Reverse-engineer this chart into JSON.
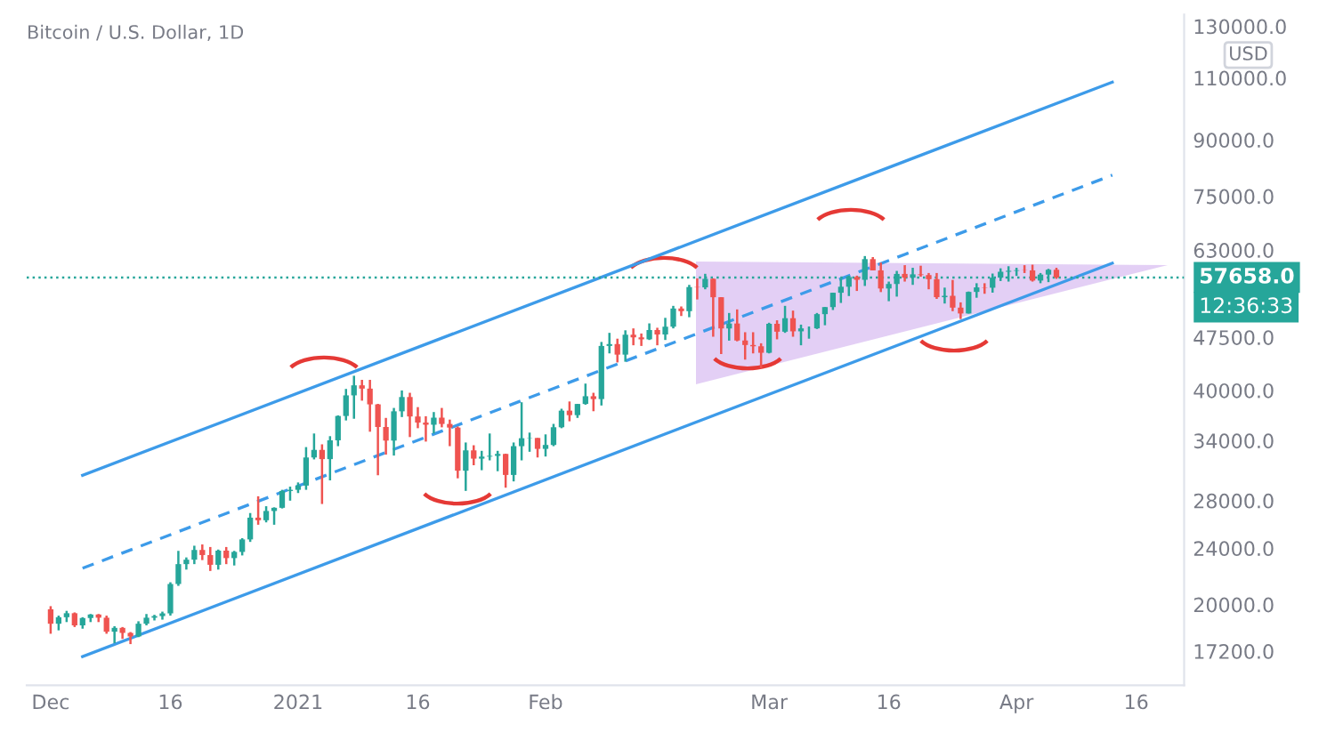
{
  "chart_data": {
    "type": "candlestick",
    "title": "Bitcoin / U.S. Dollar, 1D",
    "colors": [
      "#ef5350",
      "#26a69a",
      "#26a69a",
      "#ef5350",
      "#26a69a",
      "#26a69a",
      "#ef5350",
      "#ef5350",
      "#26a69a",
      "#ef5350",
      "#ef5350",
      "#26a69a",
      "#26a69a",
      "#26a69a",
      "#26a69a",
      "#26a69a",
      "#26a69a",
      "#26a69a",
      "#26a69a",
      "#ef5350",
      "#ef5350",
      "#26a69a",
      "#ef5350",
      "#26a69a",
      "#26a69a",
      "#26a69a",
      "#ef5350",
      "#26a69a",
      "#26a69a",
      "#26a69a",
      "#26a69a",
      "#26a69a",
      "#26a69a",
      "#26a69a",
      "#ef5350",
      "#26a69a",
      "#26a69a",
      "#26a69a",
      "#26a69a",
      "#ef5350",
      "#ef5350",
      "#ef5350",
      "#ef5350",
      "#26a69a",
      "#26a69a",
      "#ef5350",
      "#ef5350",
      "#ef5350",
      "#26a69a",
      "#ef5350",
      "#ef5350",
      "#ef5350",
      "#26a69a",
      "#ef5350",
      "#26a69a",
      "#26a69a",
      "#26a69a",
      "#ef5350",
      "#26a69a",
      "#26a69a",
      "#26a69a",
      "#ef5350",
      "#26a69a",
      "#26a69a",
      "#26a69a",
      "#ef5350",
      "#26a69a",
      "#26a69a",
      "#ef5350",
      "#26a69a",
      "#26a69a",
      "#ef5350",
      "#26a69a",
      "#ef5350",
      "#ef5350",
      "#26a69a",
      "#ef5350",
      "#26a69a",
      "#26a69a",
      "#ef5350",
      "#26a69a",
      "#ef5350",
      "#26a69a",
      "#ef5350",
      "#ef5350",
      "#26a69a",
      "#ef5350",
      "#ef5350",
      "#ef5350",
      "#ef5350",
      "#26a69a",
      "#ef5350",
      "#26a69a",
      "#ef5350",
      "#26a69a",
      "#26a69a",
      "#26a69a",
      "#26a69a",
      "#26a69a",
      "#26a69a",
      "#26a69a",
      "#ef5350",
      "#26a69a",
      "#ef5350",
      "#ef5350",
      "#26a69a",
      "#26a69a",
      "#ef5350",
      "#26a69a",
      "#ef5350",
      "#ef5350",
      "#ef5350",
      "#26a69a",
      "#ef5350",
      "#ef5350",
      "#26a69a",
      "#26a69a",
      "#ef5350",
      "#26a69a",
      "#26a69a",
      "#26a69a",
      "#26a69a",
      "#ef5350",
      "#ef5350",
      "#26a69a",
      "#26a69a",
      "#ef5350"
    ],
    "x": [
      "2020-12-01",
      "2020-12-02",
      "2020-12-03",
      "2020-12-04",
      "2020-12-05",
      "2020-12-06",
      "2020-12-07",
      "2020-12-08",
      "2020-12-09",
      "2020-12-10",
      "2020-12-11",
      "2020-12-12",
      "2020-12-13",
      "2020-12-14",
      "2020-12-15",
      "2020-12-16",
      "2020-12-17",
      "2020-12-18",
      "2020-12-19",
      "2020-12-20",
      "2020-12-21",
      "2020-12-22",
      "2020-12-23",
      "2020-12-24",
      "2020-12-25",
      "2020-12-26",
      "2020-12-27",
      "2020-12-28",
      "2020-12-29",
      "2020-12-30",
      "2020-12-31",
      "2021-01-01",
      "2021-01-02",
      "2021-01-03",
      "2021-01-04",
      "2021-01-05",
      "2021-01-06",
      "2021-01-07",
      "2021-01-08",
      "2021-01-09",
      "2021-01-10",
      "2021-01-11",
      "2021-01-12",
      "2021-01-13",
      "2021-01-14",
      "2021-01-15",
      "2021-01-16",
      "2021-01-17",
      "2021-01-18",
      "2021-01-19",
      "2021-01-20",
      "2021-01-21",
      "2021-01-22",
      "2021-01-23",
      "2021-01-24",
      "2021-01-25",
      "2021-01-26",
      "2021-01-27",
      "2021-01-28",
      "2021-01-29",
      "2021-01-30",
      "2021-01-31",
      "2021-02-01",
      "2021-02-02",
      "2021-02-03",
      "2021-02-04",
      "2021-02-05",
      "2021-02-06",
      "2021-02-07",
      "2021-02-08",
      "2021-02-09",
      "2021-02-10",
      "2021-02-11",
      "2021-02-12",
      "2021-02-13",
      "2021-02-14",
      "2021-02-15",
      "2021-02-16",
      "2021-02-17",
      "2021-02-18",
      "2021-02-19",
      "2021-02-20",
      "2021-02-21",
      "2021-02-22",
      "2021-02-23",
      "2021-02-24",
      "2021-02-25",
      "2021-02-26",
      "2021-02-27",
      "2021-02-28",
      "2021-03-01",
      "2021-03-02",
      "2021-03-03",
      "2021-03-04",
      "2021-03-05",
      "2021-03-06",
      "2021-03-07",
      "2021-03-08",
      "2021-03-09",
      "2021-03-10",
      "2021-03-11",
      "2021-03-12",
      "2021-03-13",
      "2021-03-14",
      "2021-03-15",
      "2021-03-16",
      "2021-03-17",
      "2021-03-18",
      "2021-03-19",
      "2021-03-20",
      "2021-03-21",
      "2021-03-22",
      "2021-03-23",
      "2021-03-24",
      "2021-03-25",
      "2021-03-26",
      "2021-03-27",
      "2021-03-28",
      "2021-03-29",
      "2021-03-30",
      "2021-03-31",
      "2021-04-01",
      "2021-04-02",
      "2021-04-03",
      "2021-04-04",
      "2021-04-05",
      "2021-04-06"
    ],
    "ohlc": [
      [
        19700,
        19900,
        18200,
        18800
      ],
      [
        18800,
        19300,
        18400,
        19200
      ],
      [
        19200,
        19600,
        18900,
        19450
      ],
      [
        19450,
        19500,
        18600,
        18700
      ],
      [
        18700,
        19200,
        18500,
        19150
      ],
      [
        19150,
        19400,
        18900,
        19370
      ],
      [
        19370,
        19400,
        18900,
        19170
      ],
      [
        19170,
        19300,
        18200,
        18320
      ],
      [
        18320,
        18650,
        17650,
        18550
      ],
      [
        18550,
        18600,
        17900,
        18250
      ],
      [
        18250,
        18300,
        17600,
        18040
      ],
      [
        18040,
        18950,
        18000,
        18800
      ],
      [
        18800,
        19400,
        18700,
        19170
      ],
      [
        19170,
        19350,
        19000,
        19270
      ],
      [
        19270,
        19550,
        19050,
        19440
      ],
      [
        19440,
        21500,
        19300,
        21380
      ],
      [
        21380,
        23800,
        21250,
        22800
      ],
      [
        22800,
        23300,
        22400,
        23130
      ],
      [
        23130,
        24200,
        22800,
        23870
      ],
      [
        23870,
        24300,
        23100,
        23480
      ],
      [
        23480,
        24100,
        22300,
        22750
      ],
      [
        22750,
        23900,
        22400,
        23820
      ],
      [
        23820,
        24100,
        22800,
        23250
      ],
      [
        23250,
        23800,
        22700,
        23720
      ],
      [
        23720,
        24800,
        23450,
        24700
      ],
      [
        24700,
        26900,
        24500,
        26500
      ],
      [
        26500,
        28400,
        25900,
        26280
      ],
      [
        26280,
        27500,
        26100,
        27080
      ],
      [
        27080,
        27400,
        25900,
        27360
      ],
      [
        27360,
        29000,
        27300,
        28890
      ],
      [
        28890,
        29300,
        28000,
        29000
      ],
      [
        29000,
        29700,
        28700,
        29400
      ],
      [
        29400,
        33300,
        29000,
        32200
      ],
      [
        32200,
        34800,
        32000,
        33000
      ],
      [
        33000,
        33600,
        27700,
        32030
      ],
      [
        32030,
        34500,
        29900,
        34040
      ],
      [
        34040,
        36900,
        33400,
        36830
      ],
      [
        36830,
        40200,
        36300,
        39370
      ],
      [
        39370,
        41950,
        36500,
        40670
      ],
      [
        40670,
        41400,
        38700,
        40240
      ],
      [
        40240,
        41400,
        35000,
        38240
      ],
      [
        38240,
        38300,
        30400,
        35540
      ],
      [
        35540,
        36600,
        32500,
        34010
      ],
      [
        34010,
        37800,
        32400,
        37390
      ],
      [
        37390,
        40000,
        36700,
        39160
      ],
      [
        39160,
        39700,
        34400,
        36770
      ],
      [
        36770,
        37900,
        35400,
        36050
      ],
      [
        36050,
        36800,
        33900,
        35800
      ],
      [
        35800,
        37300,
        34800,
        36630
      ],
      [
        36630,
        37800,
        35500,
        35890
      ],
      [
        35890,
        36400,
        33400,
        35470
      ],
      [
        35470,
        35600,
        30100,
        30850
      ],
      [
        30850,
        33800,
        28900,
        32950
      ],
      [
        32950,
        33500,
        31400,
        32080
      ],
      [
        32080,
        32900,
        30900,
        32290
      ],
      [
        32290,
        34800,
        31900,
        32370
      ],
      [
        32370,
        32900,
        30800,
        32570
      ],
      [
        32570,
        32600,
        29200,
        30430
      ],
      [
        30430,
        33800,
        29800,
        33400
      ],
      [
        33400,
        38500,
        31900,
        34270
      ],
      [
        34270,
        34900,
        32800,
        34300
      ],
      [
        34300,
        34300,
        32200,
        33110
      ],
      [
        33110,
        34700,
        32300,
        33530
      ],
      [
        33530,
        35900,
        33400,
        35510
      ],
      [
        35510,
        37700,
        35400,
        37470
      ],
      [
        37470,
        38600,
        36200,
        36930
      ],
      [
        36930,
        38300,
        36600,
        38290
      ],
      [
        38290,
        40900,
        38200,
        39260
      ],
      [
        39260,
        39700,
        37400,
        38900
      ],
      [
        38900,
        46800,
        38100,
        46200
      ],
      [
        46200,
        48200,
        45100,
        46480
      ],
      [
        46480,
        47300,
        43800,
        44920
      ],
      [
        44920,
        48600,
        43900,
        47910
      ],
      [
        47910,
        48900,
        46300,
        47500
      ],
      [
        47500,
        48100,
        46200,
        47200
      ],
      [
        47200,
        49700,
        47100,
        48640
      ],
      [
        48640,
        49000,
        46300,
        47950
      ],
      [
        47950,
        50600,
        47100,
        49170
      ],
      [
        49170,
        52600,
        48900,
        52150
      ],
      [
        52150,
        52500,
        50900,
        51700
      ],
      [
        51700,
        56300,
        50700,
        55900
      ],
      [
        55900,
        57500,
        53700,
        55840
      ],
      [
        55840,
        58350,
        55500,
        57410
      ],
      [
        57410,
        57500,
        47600,
        54090
      ],
      [
        54090,
        54100,
        45000,
        48890
      ],
      [
        48890,
        51400,
        47000,
        49680
      ],
      [
        49680,
        52000,
        46900,
        47020
      ],
      [
        47020,
        48300,
        44200,
        46340
      ],
      [
        46340,
        48300,
        45100,
        46150
      ],
      [
        46150,
        46600,
        43000,
        45190
      ],
      [
        45190,
        49800,
        45100,
        49630
      ],
      [
        49630,
        50200,
        47200,
        48380
      ],
      [
        48380,
        52600,
        48200,
        50540
      ],
      [
        50540,
        51800,
        47600,
        48440
      ],
      [
        48440,
        49500,
        46300,
        48900
      ],
      [
        48900,
        49200,
        47300,
        48910
      ],
      [
        48910,
        51400,
        48800,
        51210
      ],
      [
        51210,
        52400,
        49400,
        52390
      ],
      [
        52390,
        54900,
        51900,
        54880
      ],
      [
        54880,
        57400,
        53100,
        55960
      ],
      [
        55960,
        58000,
        54300,
        57750
      ],
      [
        57750,
        58000,
        55200,
        57230
      ],
      [
        57230,
        61800,
        56100,
        61190
      ],
      [
        61190,
        61600,
        59000,
        59000
      ],
      [
        59000,
        60500,
        55000,
        55640
      ],
      [
        55640,
        56900,
        53400,
        56460
      ],
      [
        56460,
        58900,
        54200,
        58330
      ],
      [
        58330,
        60000,
        56900,
        57620
      ],
      [
        57620,
        59500,
        56300,
        58250
      ],
      [
        58250,
        59900,
        57800,
        58110
      ],
      [
        58110,
        58500,
        55500,
        57350
      ],
      [
        57350,
        58500,
        53800,
        54100
      ],
      [
        54100,
        55800,
        53000,
        54340
      ],
      [
        54340,
        57200,
        51700,
        52300
      ],
      [
        52300,
        53200,
        50400,
        51320
      ],
      [
        51320,
        55100,
        51300,
        55030
      ],
      [
        55030,
        56600,
        54000,
        55840
      ],
      [
        55840,
        56600,
        54700,
        55780
      ],
      [
        55780,
        58400,
        54900,
        57630
      ],
      [
        57630,
        59400,
        57000,
        58740
      ],
      [
        58740,
        59800,
        56900,
        58920
      ],
      [
        58920,
        59500,
        57950,
        59030
      ],
      [
        59030,
        60000,
        58500,
        59000
      ],
      [
        59000,
        60100,
        56900,
        57090
      ],
      [
        57090,
        58500,
        56600,
        58200
      ],
      [
        58200,
        59300,
        56800,
        59120
      ],
      [
        59120,
        59500,
        57400,
        57658
      ]
    ],
    "series": [
      {
        "type": "line",
        "color": "#3d9be9",
        "line_style": "solid",
        "x": [
          "2020-12-05",
          "2021-04-13"
        ],
        "values": [
          30400,
          108500
        ]
      },
      {
        "type": "line",
        "color": "#3d9be9",
        "line_style": "dashed",
        "x": [
          "2020-12-05",
          "2021-04-13"
        ],
        "values": [
          22500,
          80300
        ]
      },
      {
        "type": "line",
        "color": "#3d9be9",
        "line_style": "solid",
        "x": [
          "2020-12-05",
          "2021-04-13"
        ],
        "values": [
          16900,
          60400
        ]
      }
    ],
    "ref_lines": [
      {
        "axis": "y",
        "value": 57658,
        "label": "57658.0",
        "color": "#26a69a",
        "line_style": "dotted"
      }
    ],
    "annotations": [
      "12:36:33",
      "USD"
    ],
    "log": true,
    "xlim": [
      "2020-11-28",
      "2021-04-22"
    ],
    "xticks": [
      {
        "value": "2020-12-01",
        "label": "Dec"
      },
      {
        "value": "2020-12-16",
        "label": "16"
      },
      {
        "value": "2021-01-01",
        "label": "2021"
      },
      {
        "value": "2021-01-16",
        "label": "16"
      },
      {
        "value": "2021-02-01",
        "label": "Feb"
      },
      {
        "value": "2021-03-01",
        "label": "Mar"
      },
      {
        "value": "2021-03-16",
        "label": "16"
      },
      {
        "value": "2021-04-01",
        "label": "Apr"
      },
      {
        "value": "2021-04-16",
        "label": "16"
      }
    ],
    "ylim": [
      15400,
      135000
    ],
    "yticks": [
      {
        "value": 17200,
        "label": "17200.0"
      },
      {
        "value": 20000,
        "label": "20000.0"
      },
      {
        "value": 24000,
        "label": "24000.0"
      },
      {
        "value": 28000,
        "label": "28000.0"
      },
      {
        "value": 34000,
        "label": "34000.0"
      },
      {
        "value": 40000,
        "label": "40000.0"
      },
      {
        "value": 47500,
        "label": "47500.0"
      },
      {
        "value": 63000,
        "label": "63000.0"
      },
      {
        "value": 75000,
        "label": "75000.0"
      },
      {
        "value": 90000,
        "label": "90000.0"
      },
      {
        "value": 110000,
        "label": "110000.0"
      },
      {
        "value": 130000,
        "label": "130000.0"
      }
    ]
  }
}
